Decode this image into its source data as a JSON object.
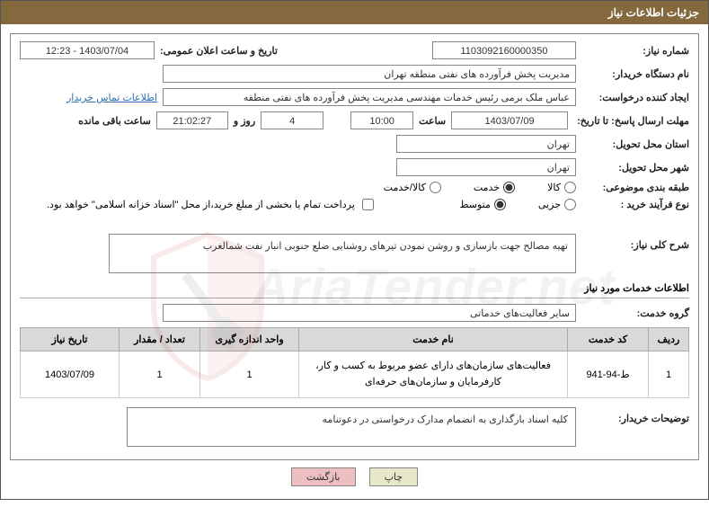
{
  "title": "جزئیات اطلاعات نیاز",
  "labels": {
    "need_no": "شماره نیاز:",
    "announce": "تاریخ و ساعت اعلان عمومی:",
    "buyer": "نام دستگاه خریدار:",
    "requester": "ایجاد کننده درخواست:",
    "contact_link": "اطلاعات تماس خریدار",
    "deadline": "مهلت ارسال پاسخ: تا تاریخ:",
    "hour": "ساعت",
    "day_and": "روز و",
    "remaining": "ساعت باقی مانده",
    "prov_deliv": "استان محل تحویل:",
    "city_deliv": "شهر محل تحویل:",
    "category": "طبقه بندی موضوعی:",
    "cat_goods": "کالا",
    "cat_service": "خدمت",
    "cat_goods_service": "کالا/خدمت",
    "proc_type": "نوع فرآیند خرید :",
    "proc_minor": "جزیی",
    "proc_medium": "متوسط",
    "payment_note": "پرداخت تمام یا بخشی از مبلغ خرید،از محل \"اسناد خزانه اسلامی\" خواهد بود.",
    "need_desc": "شرح کلی نیاز:",
    "service_info": "اطلاعات خدمات مورد نیاز",
    "service_group": "گروه خدمت:",
    "buyer_note_label": "توضیحات خریدار:",
    "btn_print": "چاپ",
    "btn_back": "بازگشت"
  },
  "table_headers": {
    "row": "ردیف",
    "code": "کد خدمت",
    "name": "نام خدمت",
    "unit": "واحد اندازه گیری",
    "qty": "تعداد / مقدار",
    "date": "تاریخ نیاز"
  },
  "values": {
    "need_no": "1103092160000350",
    "announce": "1403/07/04 - 12:23",
    "buyer_name": "مدیریت پخش فرآورده های نفتی منطقه تهران",
    "requester": "عباس ملک برمی رئیس خدمات مهندسی مدیریت پخش فرآورده های نفتی منطقه",
    "deadline_date": "1403/07/09",
    "deadline_hour": "10:00",
    "days_remain": "4",
    "time_remain": "21:02:27",
    "province": "تهران",
    "city": "تهران",
    "need_desc": "تهیه مصالح جهت بازسازی و روشن نمودن تیرهای روشنایی ضلع جنوبی انبار نفت شمالغرب",
    "service_group": "سایر فعالیت‌های خدماتی",
    "buyer_note": "کلیه اسناد بارگذاری به انضمام مدارک درخواستی در دعوتنامه"
  },
  "category_selected": "service",
  "proc_selected": "medium",
  "payment_checked": false,
  "rows": [
    {
      "idx": "1",
      "code": "ط-94-941",
      "name": "فعالیت‌های سازمان‌های دارای عضو مربوط به کسب و کار، کارفرمایان و سازمان‌های حرفه‌ای",
      "unit": "1",
      "qty": "1",
      "date": "1403/07/09"
    }
  ]
}
